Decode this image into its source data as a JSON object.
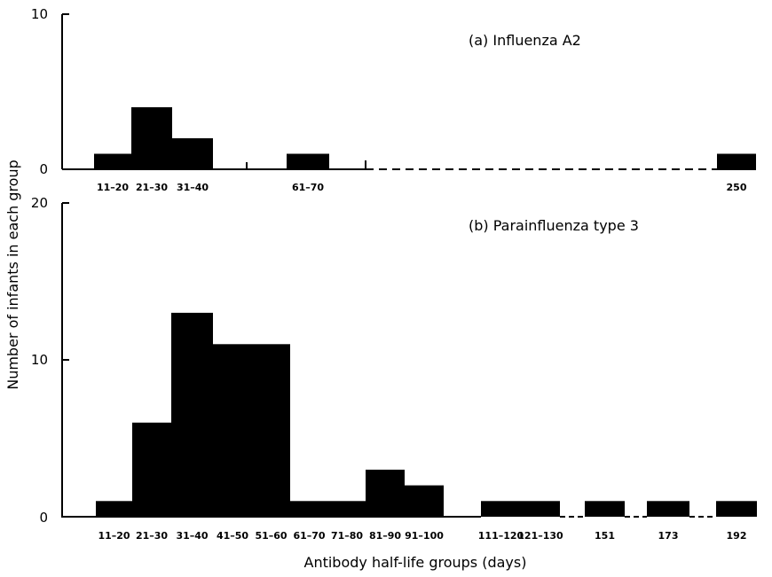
{
  "chart_data": [
    {
      "type": "bar",
      "title": "(a) Influenza A2",
      "xlabel": "Antibody half-life groups (days)",
      "ylabel": "Number of infants in each group",
      "ylim": [
        0,
        10
      ],
      "yticks": [
        "0",
        "10"
      ],
      "categories": [
        "11–20",
        "21–30",
        "31–40",
        "61–70",
        "250"
      ],
      "values": [
        1,
        4,
        2,
        1,
        1
      ]
    },
    {
      "type": "bar",
      "title": "(b) Parainfluenza type 3",
      "xlabel": "Antibody half-life groups (days)",
      "ylabel": "Number of infants in each group",
      "ylim": [
        0,
        20
      ],
      "yticks": [
        "0",
        "10",
        "20"
      ],
      "categories": [
        "11–20",
        "21–30",
        "31–40",
        "41–50",
        "51–60",
        "61–70",
        "71–80",
        "81–90",
        "91–100",
        "111–120",
        "121–130",
        "151",
        "173",
        "192"
      ],
      "values": [
        1,
        6,
        13,
        11,
        11,
        1,
        1,
        3,
        2,
        1,
        1,
        1,
        1,
        1
      ]
    }
  ]
}
